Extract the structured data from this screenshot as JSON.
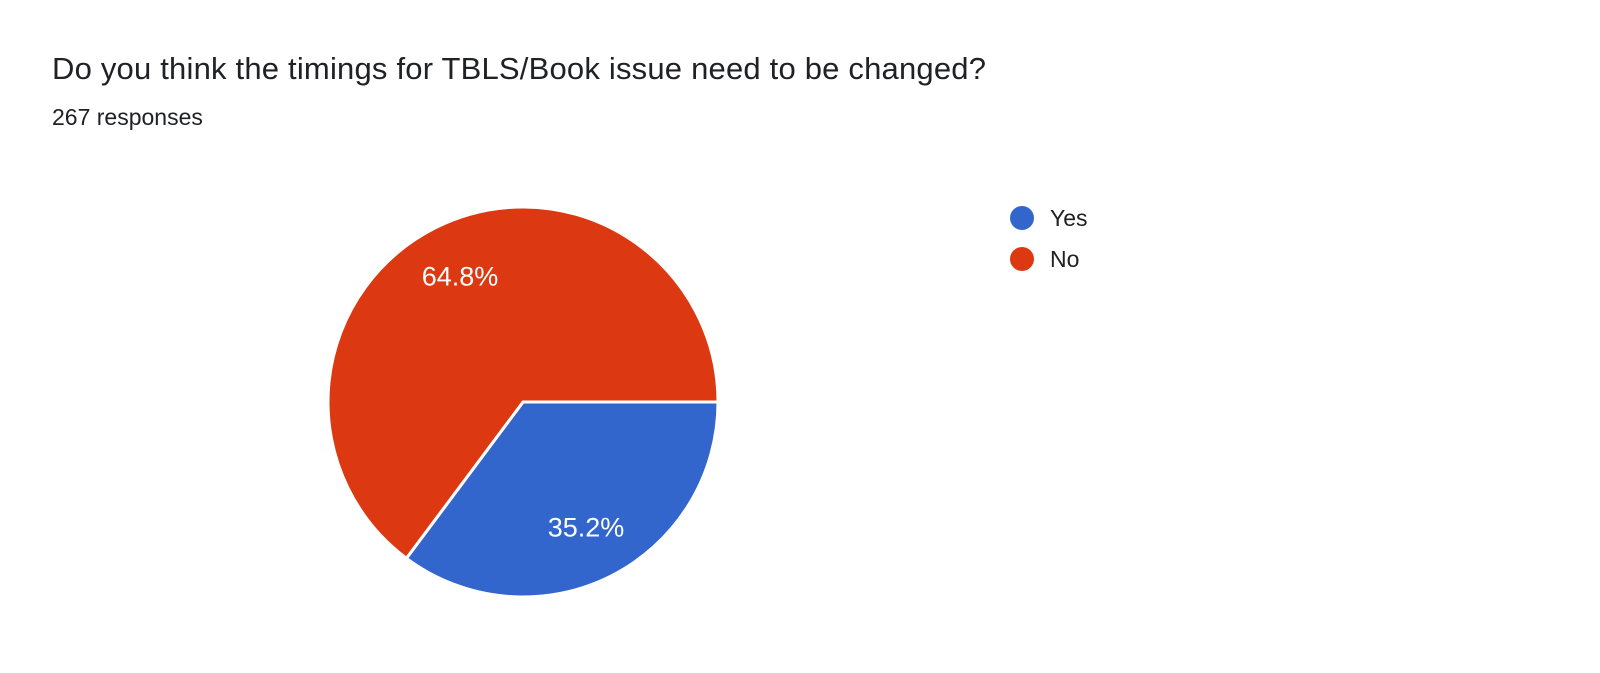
{
  "page": {
    "background": "#ffffff"
  },
  "chart_data": {
    "type": "pie",
    "title": "Do you think the timings for TBLS/Book issue need to be changed?",
    "subtitle": "267 responses",
    "labels": [
      "Yes",
      "No"
    ],
    "values": [
      35.2,
      64.8
    ],
    "value_labels": [
      "35.2%",
      "64.8%"
    ],
    "colors": [
      "#3366cc",
      "#dc3912"
    ],
    "slice_label_color": "#ffffff",
    "slice_separator_color": "#ffffff",
    "legend_position": "right",
    "start_angle_deg": 0,
    "direction": "clockwise"
  }
}
